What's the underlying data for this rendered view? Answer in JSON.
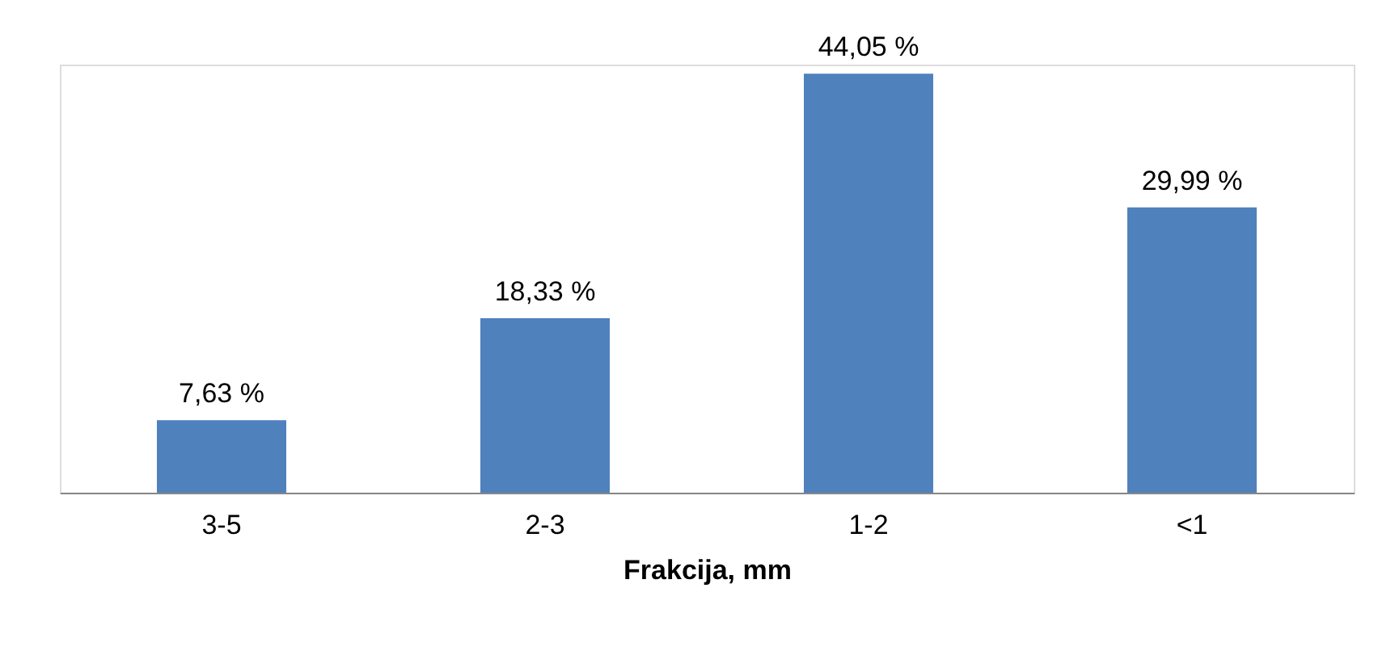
{
  "chart_data": {
    "type": "bar",
    "xlabel": "Frakcija, mm",
    "categories": [
      "3-5",
      "2-3",
      "1-2",
      "<1"
    ],
    "values": [
      7.63,
      18.33,
      44.05,
      29.99
    ],
    "value_labels": [
      "7,63 %",
      "18,33 %",
      "44,05 %",
      "29,99 %"
    ],
    "color": "#4f81bd"
  }
}
